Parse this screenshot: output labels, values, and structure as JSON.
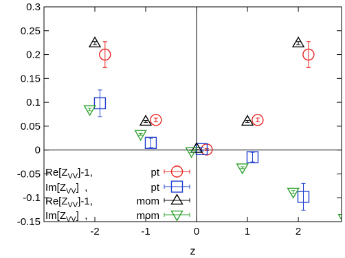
{
  "chart_data": {
    "type": "scatter",
    "xlabel": "z",
    "ylabel": "",
    "xlim": [
      -3.0,
      2.85
    ],
    "ylim": [
      -0.15,
      0.3
    ],
    "xticks": [
      -2,
      -1,
      0,
      1,
      2
    ],
    "xtick_labels": [
      "-2",
      "-1",
      "0",
      "1",
      "2"
    ],
    "yticks": [
      -0.15,
      -0.1,
      -0.05,
      0,
      0.05,
      0.1,
      0.15,
      0.2,
      0.25,
      0.3
    ],
    "ytick_labels": [
      "-0.15",
      "-0.1",
      "-0.05",
      "0",
      "0.05",
      "0.1",
      "0.15",
      "0.2",
      "0.25",
      "0.3"
    ],
    "zero_lines": true,
    "grid": false,
    "legend_position": "bottom-left",
    "series": [
      {
        "legend_main": "Re[Z",
        "legend_sub": "VV",
        "legend_tail": "]-1,",
        "legend_tag": "pt",
        "marker": "circle",
        "color": "#e8221e",
        "points": [
          {
            "x": -1.8,
            "y": 0.2,
            "err": 0.027
          },
          {
            "x": -0.8,
            "y": 0.063,
            "err": 0.004
          },
          {
            "x": 0.2,
            "y": 0.001,
            "err": 0.002
          },
          {
            "x": 1.2,
            "y": 0.063,
            "err": 0.004
          },
          {
            "x": 2.2,
            "y": 0.2,
            "err": 0.027
          }
        ]
      },
      {
        "legend_main": "Im[Z",
        "legend_sub": "VV",
        "legend_tail": "]  ,",
        "legend_tag": "pt",
        "marker": "square",
        "color": "#1f3fd0",
        "points": [
          {
            "x": -1.9,
            "y": 0.098,
            "err": 0.028
          },
          {
            "x": -0.9,
            "y": 0.015,
            "err": 0.01
          },
          {
            "x": 0.1,
            "y": 0.002,
            "err": 0.004
          },
          {
            "x": 1.1,
            "y": -0.015,
            "err": 0.01
          },
          {
            "x": 2.1,
            "y": -0.098,
            "err": 0.028
          }
        ]
      },
      {
        "legend_main": "Re[Z",
        "legend_sub": "VV",
        "legend_tail": "]-1,",
        "legend_tag": "mom",
        "marker": "triangle-up",
        "color": "#000000",
        "points": [
          {
            "x": -2.0,
            "y": 0.224,
            "err": 0.003
          },
          {
            "x": -1.0,
            "y": 0.06,
            "err": 0.002
          },
          {
            "x": 0.0,
            "y": 0.003,
            "err": 0.002
          },
          {
            "x": 1.0,
            "y": 0.06,
            "err": 0.002
          },
          {
            "x": 2.0,
            "y": 0.224,
            "err": 0.003
          }
        ]
      },
      {
        "legend_main": "Im[Z",
        "legend_sub": "VV",
        "legend_tail": "]  ,",
        "legend_tag": "mom",
        "marker": "triangle-down",
        "color": "#2ca02c",
        "points": [
          {
            "x": -2.1,
            "y": 0.085,
            "err": 0.003
          },
          {
            "x": -1.1,
            "y": 0.033,
            "err": 0.002
          },
          {
            "x": -0.1,
            "y": -0.003,
            "err": 0.002
          },
          {
            "x": 0.9,
            "y": -0.037,
            "err": 0.002
          },
          {
            "x": 1.9,
            "y": -0.088,
            "err": 0.003
          },
          {
            "x": 2.9,
            "y": -0.143,
            "err": 0.003
          }
        ]
      }
    ]
  }
}
